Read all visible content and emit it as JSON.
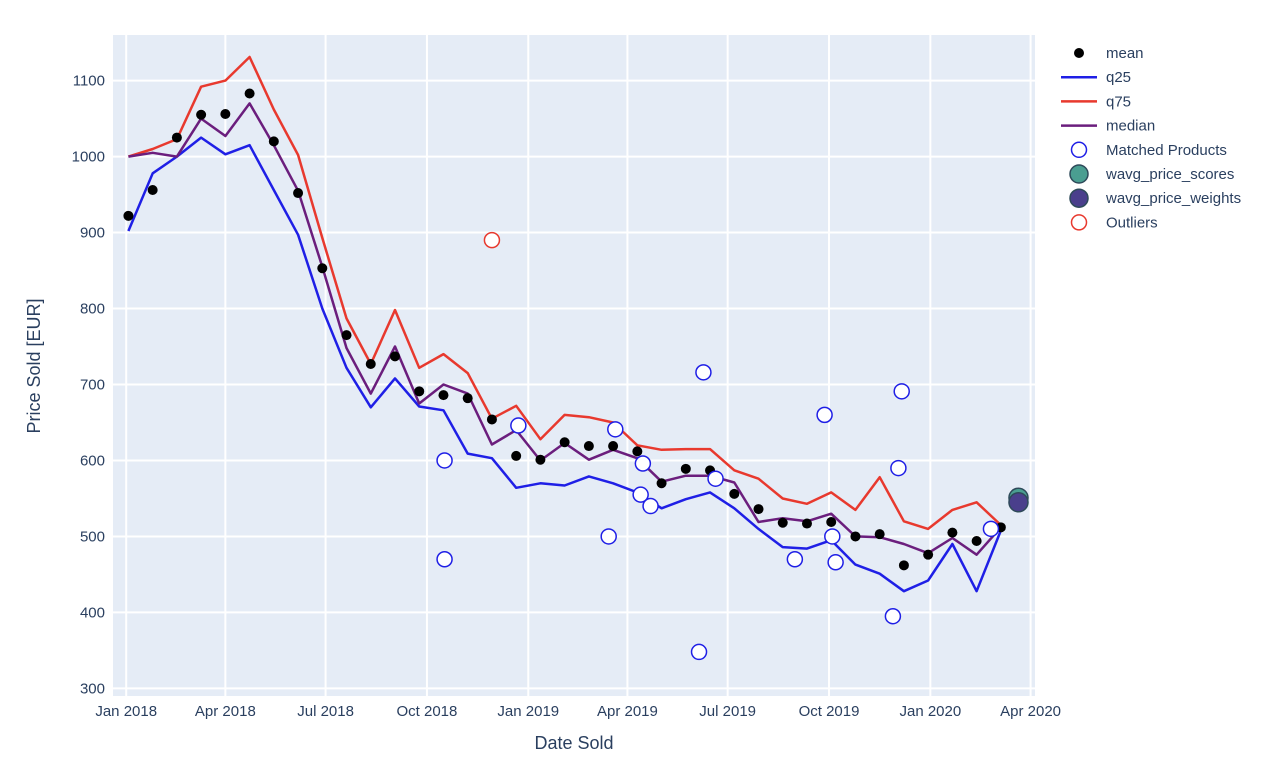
{
  "chart_data": {
    "type": "line",
    "xlabel": "Date Sold",
    "ylabel": "Price Sold [EUR]",
    "xlim": [
      "2017-12-20",
      "2020-04-05"
    ],
    "ylim": [
      290,
      1160
    ],
    "xticks": [
      {
        "date": "2018-01-01",
        "label": "Jan 2018"
      },
      {
        "date": "2018-04-01",
        "label": "Apr 2018"
      },
      {
        "date": "2018-07-01",
        "label": "Jul 2018"
      },
      {
        "date": "2018-10-01",
        "label": "Oct 2018"
      },
      {
        "date": "2019-01-01",
        "label": "Jan 2019"
      },
      {
        "date": "2019-04-01",
        "label": "Apr 2019"
      },
      {
        "date": "2019-07-01",
        "label": "Jul 2019"
      },
      {
        "date": "2019-10-01",
        "label": "Oct 2019"
      },
      {
        "date": "2020-01-01",
        "label": "Jan 2020"
      },
      {
        "date": "2020-04-01",
        "label": "Apr 2020"
      }
    ],
    "yticks": [
      300,
      400,
      500,
      600,
      700,
      800,
      900,
      1000,
      1100
    ],
    "grid": true,
    "legend_position": "right",
    "colors": {
      "background": "#e5ecf6",
      "grid": "#ffffff",
      "mean": "#000000",
      "q25": "#1f1fe6",
      "q75": "#e8392e",
      "median": "#6b1e7d",
      "matched": "#1f1fe6",
      "wavg_scores": "#4a9e91",
      "wavg_weights": "#4a3f8c",
      "outliers": "#e8392e"
    },
    "series": [
      {
        "name": "mean",
        "kind": "markers",
        "points": [
          [
            "2018-01-03",
            922
          ],
          [
            "2018-01-25",
            956
          ],
          [
            "2018-02-16",
            1025
          ],
          [
            "2018-03-10",
            1055
          ],
          [
            "2018-04-01",
            1056
          ],
          [
            "2018-04-23",
            1083
          ],
          [
            "2018-05-15",
            1020
          ],
          [
            "2018-06-06",
            952
          ],
          [
            "2018-06-28",
            853
          ],
          [
            "2018-07-20",
            765
          ],
          [
            "2018-08-11",
            727
          ],
          [
            "2018-09-02",
            737
          ],
          [
            "2018-09-24",
            691
          ],
          [
            "2018-10-16",
            686
          ],
          [
            "2018-11-07",
            682
          ],
          [
            "2018-11-29",
            654
          ],
          [
            "2018-12-21",
            606
          ],
          [
            "2019-01-12",
            601
          ],
          [
            "2019-02-03",
            624
          ],
          [
            "2019-02-25",
            619
          ],
          [
            "2019-03-19",
            619
          ],
          [
            "2019-04-10",
            612
          ],
          [
            "2019-05-02",
            570
          ],
          [
            "2019-05-24",
            589
          ],
          [
            "2019-06-15",
            587
          ],
          [
            "2019-07-07",
            556
          ],
          [
            "2019-07-29",
            536
          ],
          [
            "2019-08-20",
            518
          ],
          [
            "2019-09-11",
            517
          ],
          [
            "2019-10-03",
            519
          ],
          [
            "2019-10-25",
            500
          ],
          [
            "2019-11-16",
            503
          ],
          [
            "2019-12-08",
            462
          ],
          [
            "2019-12-30",
            476
          ],
          [
            "2020-01-21",
            505
          ],
          [
            "2020-02-12",
            494
          ],
          [
            "2020-03-05",
            512
          ]
        ]
      },
      {
        "name": "q25",
        "kind": "line",
        "points": [
          [
            "2018-01-03",
            902
          ],
          [
            "2018-01-25",
            978
          ],
          [
            "2018-02-16",
            1000
          ],
          [
            "2018-03-10",
            1025
          ],
          [
            "2018-04-01",
            1003
          ],
          [
            "2018-04-23",
            1015
          ],
          [
            "2018-05-15",
            956
          ],
          [
            "2018-06-06",
            897
          ],
          [
            "2018-06-28",
            800
          ],
          [
            "2018-07-20",
            722
          ],
          [
            "2018-08-11",
            670
          ],
          [
            "2018-09-02",
            708
          ],
          [
            "2018-09-24",
            671
          ],
          [
            "2018-10-16",
            666
          ],
          [
            "2018-11-07",
            609
          ],
          [
            "2018-11-29",
            603
          ],
          [
            "2018-12-21",
            564
          ],
          [
            "2019-01-12",
            570
          ],
          [
            "2019-02-03",
            567
          ],
          [
            "2019-02-25",
            579
          ],
          [
            "2019-03-19",
            570
          ],
          [
            "2019-04-10",
            558
          ],
          [
            "2019-05-02",
            537
          ],
          [
            "2019-05-24",
            549
          ],
          [
            "2019-06-15",
            558
          ],
          [
            "2019-07-07",
            537
          ],
          [
            "2019-07-29",
            510
          ],
          [
            "2019-08-20",
            486
          ],
          [
            "2019-09-11",
            484
          ],
          [
            "2019-10-03",
            495
          ],
          [
            "2019-10-25",
            463
          ],
          [
            "2019-11-16",
            451
          ],
          [
            "2019-12-08",
            428
          ],
          [
            "2019-12-30",
            442
          ],
          [
            "2020-01-21",
            490
          ],
          [
            "2020-02-12",
            428
          ],
          [
            "2020-03-05",
            508
          ]
        ]
      },
      {
        "name": "q75",
        "kind": "line",
        "points": [
          [
            "2018-01-03",
            1000
          ],
          [
            "2018-01-25",
            1010
          ],
          [
            "2018-02-16",
            1023
          ],
          [
            "2018-03-10",
            1092
          ],
          [
            "2018-04-01",
            1100
          ],
          [
            "2018-04-23",
            1131
          ],
          [
            "2018-05-15",
            1062
          ],
          [
            "2018-06-06",
            1002
          ],
          [
            "2018-06-28",
            893
          ],
          [
            "2018-07-20",
            787
          ],
          [
            "2018-08-11",
            727
          ],
          [
            "2018-09-02",
            798
          ],
          [
            "2018-09-24",
            722
          ],
          [
            "2018-10-16",
            740
          ],
          [
            "2018-11-07",
            715
          ],
          [
            "2018-11-29",
            655
          ],
          [
            "2018-12-21",
            672
          ],
          [
            "2019-01-12",
            628
          ],
          [
            "2019-02-03",
            660
          ],
          [
            "2019-02-25",
            657
          ],
          [
            "2019-03-19",
            650
          ],
          [
            "2019-04-10",
            620
          ],
          [
            "2019-05-02",
            614
          ],
          [
            "2019-05-24",
            615
          ],
          [
            "2019-06-15",
            615
          ],
          [
            "2019-07-07",
            587
          ],
          [
            "2019-07-29",
            576
          ],
          [
            "2019-08-20",
            550
          ],
          [
            "2019-09-11",
            543
          ],
          [
            "2019-10-03",
            558
          ],
          [
            "2019-10-25",
            535
          ],
          [
            "2019-11-16",
            578
          ],
          [
            "2019-12-08",
            520
          ],
          [
            "2019-12-30",
            510
          ],
          [
            "2020-01-21",
            535
          ],
          [
            "2020-02-12",
            545
          ],
          [
            "2020-03-05",
            515
          ]
        ]
      },
      {
        "name": "median",
        "kind": "line",
        "points": [
          [
            "2018-01-03",
            1000
          ],
          [
            "2018-01-25",
            1005
          ],
          [
            "2018-02-16",
            1000
          ],
          [
            "2018-03-10",
            1050
          ],
          [
            "2018-04-01",
            1027
          ],
          [
            "2018-04-23",
            1070
          ],
          [
            "2018-05-15",
            1015
          ],
          [
            "2018-06-06",
            955
          ],
          [
            "2018-06-28",
            855
          ],
          [
            "2018-07-20",
            748
          ],
          [
            "2018-08-11",
            688
          ],
          [
            "2018-09-02",
            750
          ],
          [
            "2018-09-24",
            675
          ],
          [
            "2018-10-16",
            700
          ],
          [
            "2018-11-07",
            688
          ],
          [
            "2018-11-29",
            621
          ],
          [
            "2018-12-21",
            640
          ],
          [
            "2019-01-12",
            600
          ],
          [
            "2019-02-03",
            623
          ],
          [
            "2019-02-25",
            601
          ],
          [
            "2019-03-19",
            614
          ],
          [
            "2019-04-10",
            603
          ],
          [
            "2019-05-02",
            572
          ],
          [
            "2019-05-24",
            580
          ],
          [
            "2019-06-15",
            580
          ],
          [
            "2019-07-07",
            571
          ],
          [
            "2019-07-29",
            519
          ],
          [
            "2019-08-20",
            524
          ],
          [
            "2019-09-11",
            520
          ],
          [
            "2019-10-03",
            530
          ],
          [
            "2019-10-25",
            500
          ],
          [
            "2019-11-16",
            499
          ],
          [
            "2019-12-08",
            490
          ],
          [
            "2019-12-30",
            478
          ],
          [
            "2020-01-21",
            498
          ],
          [
            "2020-02-12",
            476
          ],
          [
            "2020-03-05",
            512
          ]
        ]
      },
      {
        "name": "Matched Products",
        "kind": "hollow_markers",
        "points": [
          [
            "2018-10-17",
            600
          ],
          [
            "2018-10-17",
            470
          ],
          [
            "2018-12-23",
            646
          ],
          [
            "2019-03-15",
            500
          ],
          [
            "2019-03-21",
            641
          ],
          [
            "2019-04-13",
            555
          ],
          [
            "2019-04-15",
            596
          ],
          [
            "2019-04-22",
            540
          ],
          [
            "2019-06-05",
            348
          ],
          [
            "2019-06-09",
            716
          ],
          [
            "2019-06-20",
            576
          ],
          [
            "2019-08-31",
            470
          ],
          [
            "2019-09-27",
            660
          ],
          [
            "2019-10-04",
            500
          ],
          [
            "2019-10-07",
            466
          ],
          [
            "2019-11-28",
            395
          ],
          [
            "2019-12-03",
            590
          ],
          [
            "2019-12-06",
            691
          ],
          [
            "2020-02-25",
            510
          ]
        ]
      },
      {
        "name": "wavg_price_scores",
        "kind": "large_markers",
        "points": [
          [
            "2020-03-21",
            551
          ]
        ]
      },
      {
        "name": "wavg_price_weights",
        "kind": "large_markers",
        "points": [
          [
            "2020-03-21",
            545
          ]
        ]
      },
      {
        "name": "Outliers",
        "kind": "hollow_markers",
        "points": [
          [
            "2018-11-29",
            890
          ]
        ]
      }
    ]
  }
}
